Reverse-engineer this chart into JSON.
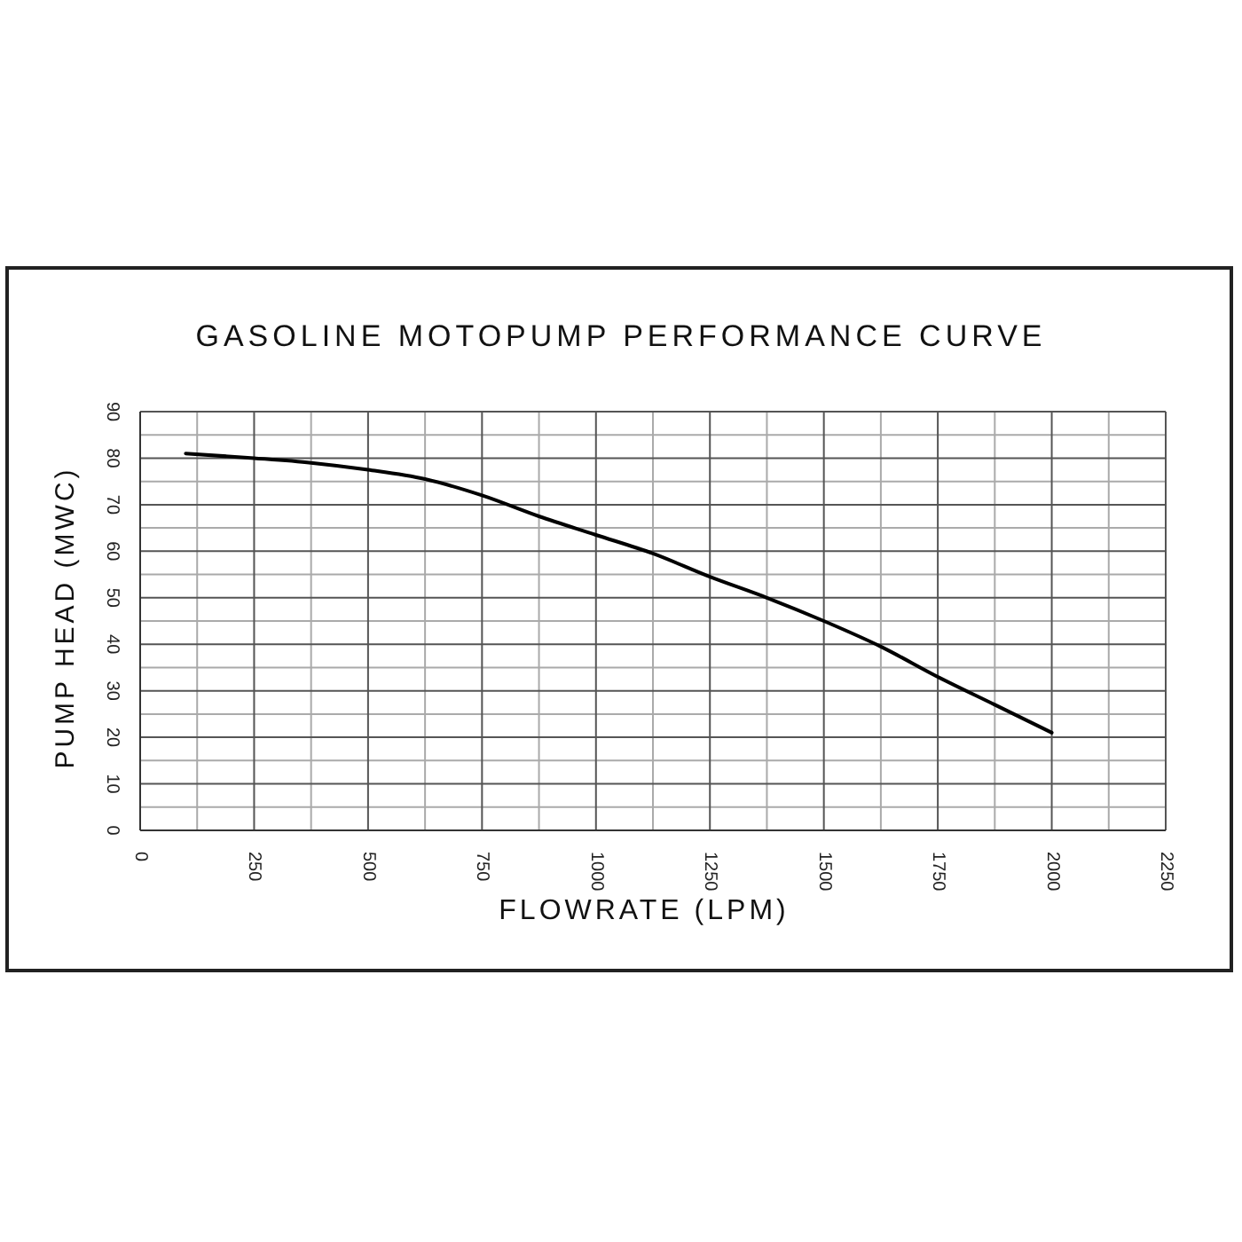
{
  "chart_data": {
    "type": "line",
    "title": "GASOLINE MOTOPUMP PERFORMANCE CURVE",
    "xlabel": "FLOWRATE (LPM)",
    "ylabel": "PUMP HEAD (MWC)",
    "x": [
      100,
      250,
      375,
      500,
      625,
      750,
      875,
      1000,
      1125,
      1250,
      1375,
      1500,
      1625,
      1750,
      1875,
      2000
    ],
    "series": [
      {
        "color": "#000000",
        "values": [
          81,
          80,
          79,
          77.5,
          75.5,
          72,
          67.5,
          63.5,
          59.5,
          54.5,
          50,
          45,
          39.5,
          33,
          27,
          21
        ]
      }
    ],
    "xlim": [
      0,
      2250
    ],
    "xticks": [
      0,
      {
        "value": 125,
        "label": null
      },
      250,
      {
        "value": 375,
        "label": null
      },
      500,
      {
        "value": 625,
        "label": null
      },
      750,
      {
        "value": 875,
        "label": null
      },
      1000,
      {
        "value": 1125,
        "label": null
      },
      1250,
      {
        "value": 1375,
        "label": null
      },
      1500,
      {
        "value": 1625,
        "label": null
      },
      1750,
      {
        "value": 1875,
        "label": null
      },
      2000,
      {
        "value": 2125,
        "label": null
      },
      2250
    ],
    "ylim": [
      0,
      90
    ],
    "yticks": [
      0,
      {
        "value": 5,
        "label": null
      },
      10,
      {
        "value": 15,
        "label": null
      },
      20,
      {
        "value": 25,
        "label": null
      },
      30,
      {
        "value": 35,
        "label": null
      },
      40,
      {
        "value": 45,
        "label": null
      },
      50,
      {
        "value": 55,
        "label": null
      },
      60,
      {
        "value": 65,
        "label": null
      },
      70,
      {
        "value": 75,
        "label": null
      },
      80,
      {
        "value": 85,
        "label": null
      },
      90
    ],
    "grid": true,
    "marker": "none",
    "line_style": "solid"
  }
}
